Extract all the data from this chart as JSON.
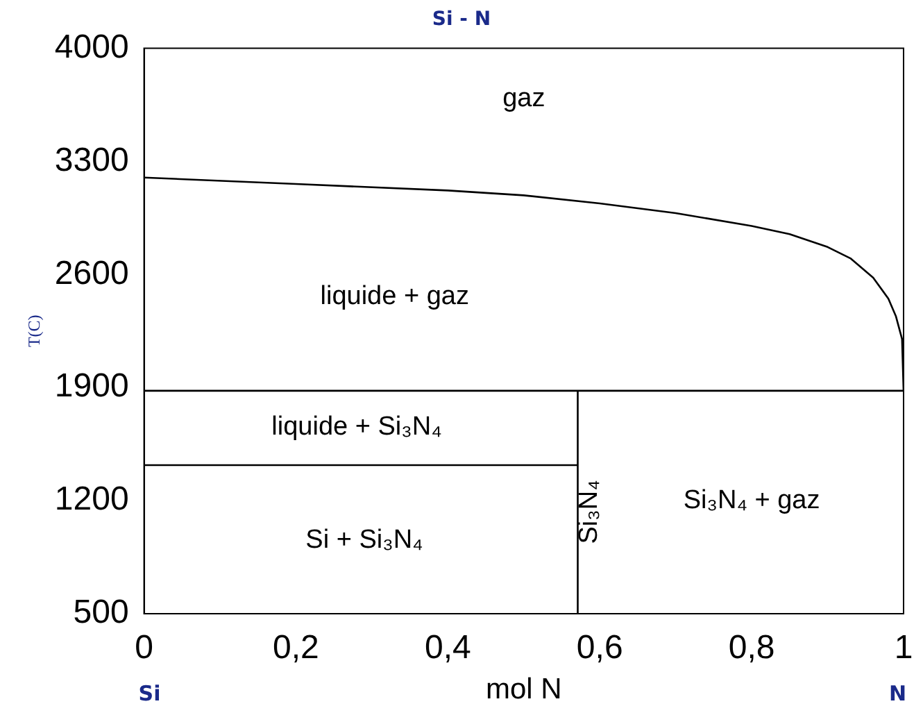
{
  "chart_data": {
    "type": "line",
    "title": "Si - N",
    "xlabel": "mol N",
    "ylabel": "T(C)",
    "xlim": [
      0,
      1
    ],
    "ylim": [
      500,
      4000
    ],
    "xticks": [
      0,
      {
        "value": 0.2,
        "label": "0,2"
      },
      {
        "value": 0.4,
        "label": "0,4"
      },
      {
        "value": 0.6,
        "label": "0,6"
      },
      {
        "value": 0.8,
        "label": "0,8"
      },
      1
    ],
    "yticks": [
      500,
      1200,
      1900,
      2600,
      3300,
      4000
    ],
    "grid": false,
    "legend": false,
    "marker": "none",
    "line_style": "solid",
    "series": [
      {
        "color": "#000000",
        "x": [
          0,
          0.2,
          0.4,
          0.5,
          0.6,
          0.7,
          0.8,
          0.85,
          0.9,
          0.93,
          0.96,
          0.98,
          0.99,
          0.998,
          1
        ],
        "values": [
          3200,
          3160,
          3120,
          3090,
          3040,
          2980,
          2900,
          2850,
          2770,
          2700,
          2580,
          2450,
          2340,
          2200,
          1880
        ]
      },
      {
        "color": "#000000",
        "x": [
          0,
          1
        ],
        "values": [
          1880,
          1880
        ]
      },
      {
        "color": "#000000",
        "x": [
          0,
          0.571
        ],
        "values": [
          1420,
          1420
        ]
      },
      {
        "color": "#000000",
        "x": [
          0.571,
          0.571
        ],
        "values": [
          500,
          1880
        ]
      }
    ],
    "annotations": [
      "gaz",
      "liquide + gaz",
      "liquide + Si₃N₄",
      "Si + Si₃N₄",
      "Si₃N₄",
      "Si₃N₄ + gaz",
      "Si",
      "N"
    ]
  }
}
